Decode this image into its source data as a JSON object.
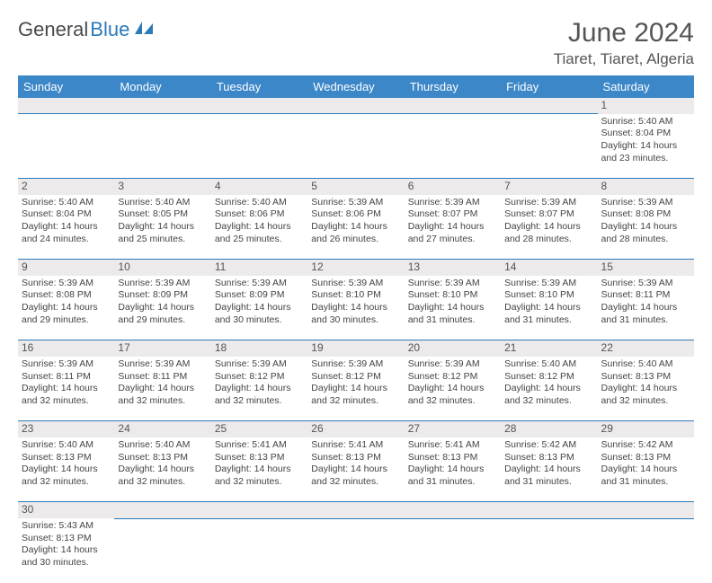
{
  "logo": {
    "text1": "General",
    "text2": "Blue"
  },
  "title": "June 2024",
  "location": "Tiaret, Tiaret, Algeria",
  "colors": {
    "header_bg": "#3b87c8",
    "header_text": "#ffffff",
    "daynum_bg": "#eceaea",
    "border": "#2a7ab8",
    "empty_bg": "#f0f0f0"
  },
  "weekdays": [
    "Sunday",
    "Monday",
    "Tuesday",
    "Wednesday",
    "Thursday",
    "Friday",
    "Saturday"
  ],
  "weeks": [
    {
      "nums": [
        "",
        "",
        "",
        "",
        "",
        "",
        "1"
      ],
      "cells": [
        null,
        null,
        null,
        null,
        null,
        null,
        {
          "sr": "Sunrise: 5:40 AM",
          "ss": "Sunset: 8:04 PM",
          "d1": "Daylight: 14 hours",
          "d2": "and 23 minutes."
        }
      ]
    },
    {
      "nums": [
        "2",
        "3",
        "4",
        "5",
        "6",
        "7",
        "8"
      ],
      "cells": [
        {
          "sr": "Sunrise: 5:40 AM",
          "ss": "Sunset: 8:04 PM",
          "d1": "Daylight: 14 hours",
          "d2": "and 24 minutes."
        },
        {
          "sr": "Sunrise: 5:40 AM",
          "ss": "Sunset: 8:05 PM",
          "d1": "Daylight: 14 hours",
          "d2": "and 25 minutes."
        },
        {
          "sr": "Sunrise: 5:40 AM",
          "ss": "Sunset: 8:06 PM",
          "d1": "Daylight: 14 hours",
          "d2": "and 25 minutes."
        },
        {
          "sr": "Sunrise: 5:39 AM",
          "ss": "Sunset: 8:06 PM",
          "d1": "Daylight: 14 hours",
          "d2": "and 26 minutes."
        },
        {
          "sr": "Sunrise: 5:39 AM",
          "ss": "Sunset: 8:07 PM",
          "d1": "Daylight: 14 hours",
          "d2": "and 27 minutes."
        },
        {
          "sr": "Sunrise: 5:39 AM",
          "ss": "Sunset: 8:07 PM",
          "d1": "Daylight: 14 hours",
          "d2": "and 28 minutes."
        },
        {
          "sr": "Sunrise: 5:39 AM",
          "ss": "Sunset: 8:08 PM",
          "d1": "Daylight: 14 hours",
          "d2": "and 28 minutes."
        }
      ]
    },
    {
      "nums": [
        "9",
        "10",
        "11",
        "12",
        "13",
        "14",
        "15"
      ],
      "cells": [
        {
          "sr": "Sunrise: 5:39 AM",
          "ss": "Sunset: 8:08 PM",
          "d1": "Daylight: 14 hours",
          "d2": "and 29 minutes."
        },
        {
          "sr": "Sunrise: 5:39 AM",
          "ss": "Sunset: 8:09 PM",
          "d1": "Daylight: 14 hours",
          "d2": "and 29 minutes."
        },
        {
          "sr": "Sunrise: 5:39 AM",
          "ss": "Sunset: 8:09 PM",
          "d1": "Daylight: 14 hours",
          "d2": "and 30 minutes."
        },
        {
          "sr": "Sunrise: 5:39 AM",
          "ss": "Sunset: 8:10 PM",
          "d1": "Daylight: 14 hours",
          "d2": "and 30 minutes."
        },
        {
          "sr": "Sunrise: 5:39 AM",
          "ss": "Sunset: 8:10 PM",
          "d1": "Daylight: 14 hours",
          "d2": "and 31 minutes."
        },
        {
          "sr": "Sunrise: 5:39 AM",
          "ss": "Sunset: 8:10 PM",
          "d1": "Daylight: 14 hours",
          "d2": "and 31 minutes."
        },
        {
          "sr": "Sunrise: 5:39 AM",
          "ss": "Sunset: 8:11 PM",
          "d1": "Daylight: 14 hours",
          "d2": "and 31 minutes."
        }
      ]
    },
    {
      "nums": [
        "16",
        "17",
        "18",
        "19",
        "20",
        "21",
        "22"
      ],
      "cells": [
        {
          "sr": "Sunrise: 5:39 AM",
          "ss": "Sunset: 8:11 PM",
          "d1": "Daylight: 14 hours",
          "d2": "and 32 minutes."
        },
        {
          "sr": "Sunrise: 5:39 AM",
          "ss": "Sunset: 8:11 PM",
          "d1": "Daylight: 14 hours",
          "d2": "and 32 minutes."
        },
        {
          "sr": "Sunrise: 5:39 AM",
          "ss": "Sunset: 8:12 PM",
          "d1": "Daylight: 14 hours",
          "d2": "and 32 minutes."
        },
        {
          "sr": "Sunrise: 5:39 AM",
          "ss": "Sunset: 8:12 PM",
          "d1": "Daylight: 14 hours",
          "d2": "and 32 minutes."
        },
        {
          "sr": "Sunrise: 5:39 AM",
          "ss": "Sunset: 8:12 PM",
          "d1": "Daylight: 14 hours",
          "d2": "and 32 minutes."
        },
        {
          "sr": "Sunrise: 5:40 AM",
          "ss": "Sunset: 8:12 PM",
          "d1": "Daylight: 14 hours",
          "d2": "and 32 minutes."
        },
        {
          "sr": "Sunrise: 5:40 AM",
          "ss": "Sunset: 8:13 PM",
          "d1": "Daylight: 14 hours",
          "d2": "and 32 minutes."
        }
      ]
    },
    {
      "nums": [
        "23",
        "24",
        "25",
        "26",
        "27",
        "28",
        "29"
      ],
      "cells": [
        {
          "sr": "Sunrise: 5:40 AM",
          "ss": "Sunset: 8:13 PM",
          "d1": "Daylight: 14 hours",
          "d2": "and 32 minutes."
        },
        {
          "sr": "Sunrise: 5:40 AM",
          "ss": "Sunset: 8:13 PM",
          "d1": "Daylight: 14 hours",
          "d2": "and 32 minutes."
        },
        {
          "sr": "Sunrise: 5:41 AM",
          "ss": "Sunset: 8:13 PM",
          "d1": "Daylight: 14 hours",
          "d2": "and 32 minutes."
        },
        {
          "sr": "Sunrise: 5:41 AM",
          "ss": "Sunset: 8:13 PM",
          "d1": "Daylight: 14 hours",
          "d2": "and 32 minutes."
        },
        {
          "sr": "Sunrise: 5:41 AM",
          "ss": "Sunset: 8:13 PM",
          "d1": "Daylight: 14 hours",
          "d2": "and 31 minutes."
        },
        {
          "sr": "Sunrise: 5:42 AM",
          "ss": "Sunset: 8:13 PM",
          "d1": "Daylight: 14 hours",
          "d2": "and 31 minutes."
        },
        {
          "sr": "Sunrise: 5:42 AM",
          "ss": "Sunset: 8:13 PM",
          "d1": "Daylight: 14 hours",
          "d2": "and 31 minutes."
        }
      ]
    },
    {
      "nums": [
        "30",
        "",
        "",
        "",
        "",
        "",
        ""
      ],
      "cells": [
        {
          "sr": "Sunrise: 5:43 AM",
          "ss": "Sunset: 8:13 PM",
          "d1": "Daylight: 14 hours",
          "d2": "and 30 minutes."
        },
        null,
        null,
        null,
        null,
        null,
        null
      ]
    }
  ]
}
